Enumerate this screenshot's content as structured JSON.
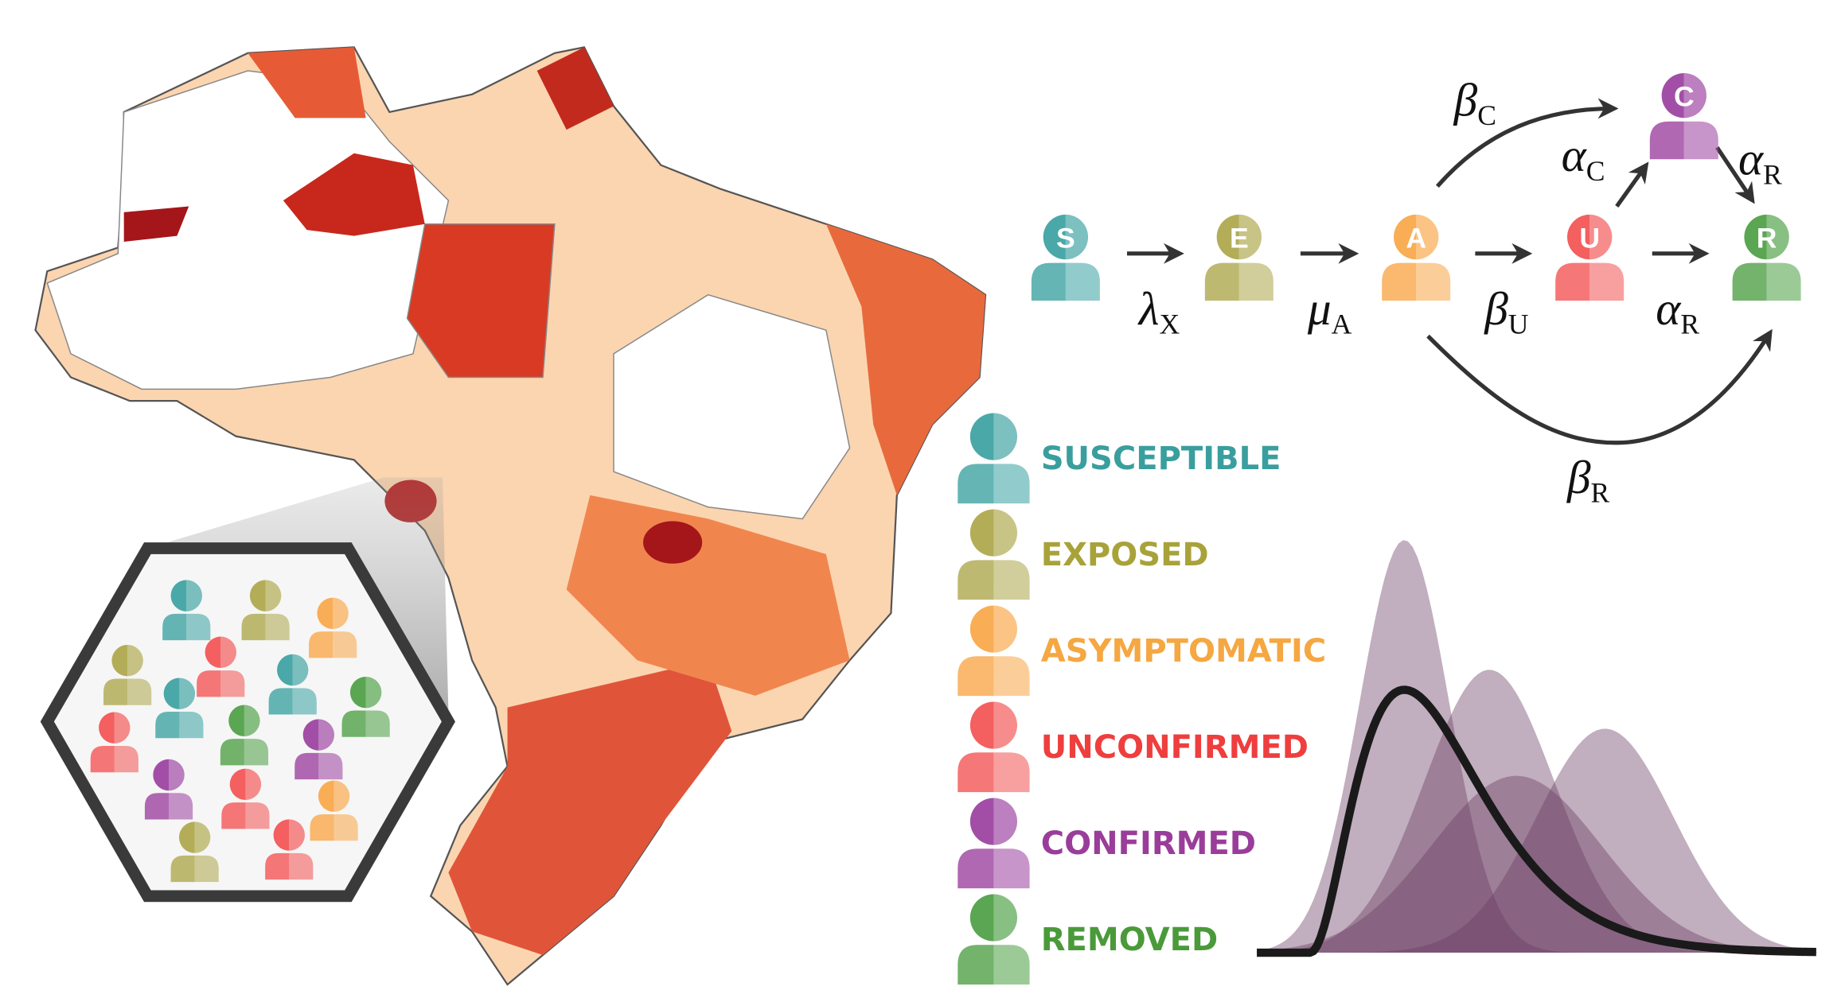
{
  "nodes": [
    {
      "label": "S",
      "color": "#4aa8a8"
    },
    {
      "label": "E",
      "color": "#b3ad58"
    },
    {
      "label": "A",
      "color": "#f9ad55"
    },
    {
      "label": "U",
      "color": "#f45f5f"
    },
    {
      "label": "C",
      "color": "#a24ea6"
    },
    {
      "label": "R",
      "color": "#5aa652"
    }
  ],
  "edges": [
    {
      "symbol": "λ",
      "sub": "X"
    },
    {
      "symbol": "μ",
      "sub": "A"
    },
    {
      "symbol": "β",
      "sub": "U"
    },
    {
      "symbol": "α",
      "sub": "R"
    },
    {
      "symbol": "β",
      "sub": "C"
    },
    {
      "symbol": "α",
      "sub": "C"
    },
    {
      "symbol": "α",
      "sub": "R"
    },
    {
      "symbol": "β",
      "sub": "R"
    }
  ],
  "legend": [
    {
      "label": "SUSCEPTIBLE",
      "color": "#3a9e9e"
    },
    {
      "label": "EXPOSED",
      "color": "#a8a23a"
    },
    {
      "label": "ASYMPTOMATIC",
      "color": "#f5a742"
    },
    {
      "label": "UNCONFIRMED",
      "color": "#ef3e3e"
    },
    {
      "label": "CONFIRMED",
      "color": "#9a3d9a"
    },
    {
      "label": "REMOVED",
      "color": "#4a9a3a"
    }
  ]
}
